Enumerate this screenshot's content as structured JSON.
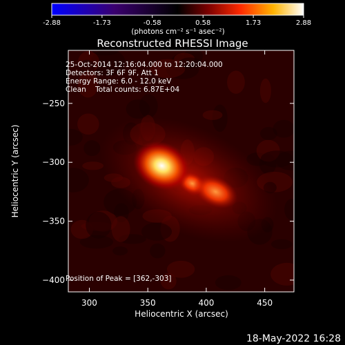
{
  "chart_data": {
    "type": "heatmap",
    "title": "Reconstructed RHESSI Image",
    "xlabel": "Heliocentric X (arcsec)",
    "ylabel": "Heliocentric Y (arcsec)",
    "xlim": [
      282,
      475
    ],
    "ylim": [
      -410,
      -205
    ],
    "x_ticks": [
      300,
      350,
      400,
      450
    ],
    "y_ticks": [
      -250,
      -300,
      -350,
      -400
    ],
    "colorbar": {
      "ticks": [
        "-2.88",
        "-1.73",
        "-0.58",
        "0.58",
        "1.73",
        "2.88"
      ],
      "range": [
        -2.88,
        2.88
      ],
      "units": "(photons cm⁻² s⁻¹ asec⁻²)"
    },
    "annotations": [
      "25-Oct-2014 12:16:04.000 to 12:20:04.000",
      "Detectors: 3F 6F 9F, Att 1",
      "Energy Range: 6.0 - 12.0 keV",
      "Clean    Total counts: 6.87E+04"
    ],
    "peak_label": "Position of Peak = [362,-303]",
    "sources": [
      {
        "x": 362,
        "y": -303,
        "rx": 14,
        "ry": 11,
        "intensity": 2.88
      },
      {
        "x": 408,
        "y": -325,
        "rx": 11,
        "ry": 7,
        "intensity": 2.0
      },
      {
        "x": 388,
        "y": -318,
        "rx": 7,
        "ry": 5,
        "intensity": 1.4
      },
      {
        "x": 385,
        "y": -315,
        "rx": 45,
        "ry": 25,
        "intensity": 0.9
      }
    ]
  },
  "footer_date": "18-May-2022 16:28"
}
